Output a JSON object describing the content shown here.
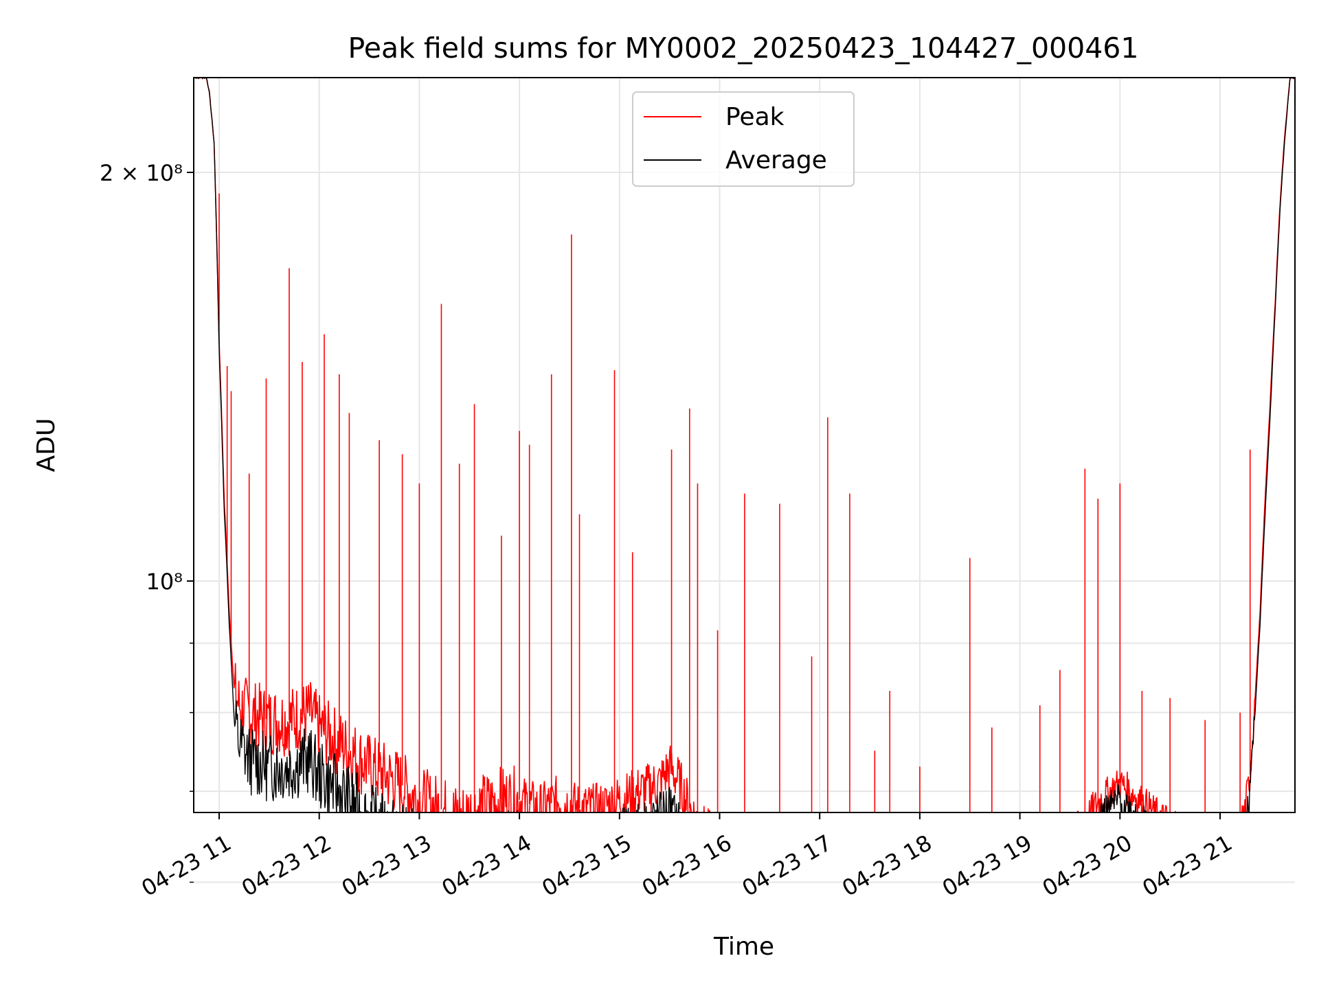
{
  "chart_data": {
    "type": "line",
    "title": "Peak field sums for MY0002_20250423_104427_000461",
    "xlabel": "Time",
    "ylabel": "ADU",
    "yscale": "log",
    "grid": true,
    "legend_position": "top-center",
    "x_tick_labels": [
      "04-23 11",
      "04-23 12",
      "04-23 13",
      "04-23 14",
      "04-23 15",
      "04-23 16",
      "04-23 17",
      "04-23 18",
      "04-23 19",
      "04-23 20",
      "04-23 21"
    ],
    "y_tick_labels": [
      {
        "value": 200000000,
        "label": "2 × 10⁸"
      },
      {
        "value": 100000000,
        "label": "10⁸"
      }
    ],
    "xlim": [
      "2025-04-23 10:45",
      "2025-04-23 21:45"
    ],
    "ylim": [
      57000000,
      235000000
    ],
    "x_unit": "hour of day, 2025-04-23",
    "series": [
      {
        "name": "Peak",
        "color": "#ff0000",
        "x": [
          10.75,
          10.8,
          10.87,
          10.9,
          10.95,
          11.0,
          11.05,
          11.1,
          11.15,
          11.2,
          11.3,
          11.5,
          11.7,
          11.9,
          12.0,
          12.2,
          12.5,
          12.8,
          13.0,
          13.2,
          13.4,
          13.6,
          13.8,
          14.0,
          14.2,
          14.4,
          14.6,
          14.8,
          15.0,
          15.2,
          15.4,
          15.5,
          15.6,
          15.7,
          15.8,
          16.0,
          16.2,
          16.5,
          16.8,
          17.0,
          17.3,
          17.6,
          17.9,
          18.0,
          18.3,
          18.6,
          18.8,
          19.0,
          19.2,
          19.4,
          19.6,
          19.8,
          20.0,
          20.2,
          20.4,
          20.6,
          20.8,
          21.0,
          21.1,
          21.2,
          21.25,
          21.3,
          21.35,
          21.4,
          21.45,
          21.5,
          21.55,
          21.6,
          21.65,
          21.7,
          21.75
        ],
        "y": [
          235000000,
          235000000,
          235000000,
          230000000,
          210000000,
          150000000,
          115000000,
          95000000,
          83000000,
          81000000,
          80000000,
          79000000,
          79000000,
          80000000,
          78000000,
          76000000,
          73000000,
          71000000,
          69000000,
          68000000,
          67000000,
          68000000,
          69000000,
          69000000,
          68000000,
          69000000,
          68000000,
          68000000,
          69000000,
          70000000,
          71000000,
          73000000,
          71000000,
          68000000,
          66000000,
          64000000,
          62000000,
          61000000,
          60000000,
          59500000,
          59000000,
          58500000,
          58500000,
          59000000,
          59000000,
          58500000,
          58500000,
          60000000,
          62000000,
          64000000,
          66000000,
          69000000,
          71000000,
          69000000,
          67000000,
          66000000,
          65000000,
          64500000,
          64000000,
          66000000,
          68000000,
          72000000,
          82000000,
          95000000,
          115000000,
          135000000,
          160000000,
          190000000,
          215000000,
          235000000,
          235000000
        ],
        "spikes": [
          [
            11.0,
            193000000
          ],
          [
            11.08,
            144000000
          ],
          [
            11.12,
            138000000
          ],
          [
            11.3,
            120000000
          ],
          [
            11.47,
            141000000
          ],
          [
            11.7,
            170000000
          ],
          [
            11.83,
            145000000
          ],
          [
            12.05,
            152000000
          ],
          [
            12.2,
            142000000
          ],
          [
            12.3,
            133000000
          ],
          [
            12.6,
            127000000
          ],
          [
            12.83,
            124000000
          ],
          [
            13.0,
            118000000
          ],
          [
            13.22,
            160000000
          ],
          [
            13.4,
            122000000
          ],
          [
            13.55,
            135000000
          ],
          [
            13.82,
            108000000
          ],
          [
            14.0,
            129000000
          ],
          [
            14.1,
            126000000
          ],
          [
            14.32,
            142000000
          ],
          [
            14.52,
            180000000
          ],
          [
            14.6,
            112000000
          ],
          [
            14.95,
            143000000
          ],
          [
            15.13,
            105000000
          ],
          [
            15.52,
            125000000
          ],
          [
            15.7,
            134000000
          ],
          [
            15.78,
            118000000
          ],
          [
            15.98,
            92000000
          ],
          [
            16.25,
            116000000
          ],
          [
            16.6,
            114000000
          ],
          [
            16.92,
            88000000
          ],
          [
            17.08,
            132000000
          ],
          [
            17.3,
            116000000
          ],
          [
            17.55,
            75000000
          ],
          [
            17.7,
            83000000
          ],
          [
            18.0,
            73000000
          ],
          [
            18.5,
            104000000
          ],
          [
            18.72,
            78000000
          ],
          [
            19.2,
            81000000
          ],
          [
            19.4,
            86000000
          ],
          [
            19.65,
            121000000
          ],
          [
            19.78,
            115000000
          ],
          [
            20.0,
            118000000
          ],
          [
            20.22,
            83000000
          ],
          [
            20.5,
            82000000
          ],
          [
            20.85,
            79000000
          ],
          [
            21.2,
            80000000
          ],
          [
            21.3,
            125000000
          ]
        ]
      },
      {
        "name": "Average",
        "color": "#000000",
        "x": [
          10.75,
          10.8,
          10.87,
          10.9,
          10.95,
          11.0,
          11.05,
          11.1,
          11.15,
          11.2,
          11.3,
          11.5,
          11.7,
          11.9,
          12.0,
          12.2,
          12.5,
          12.8,
          13.0,
          13.2,
          13.4,
          13.6,
          13.8,
          14.0,
          14.2,
          14.4,
          14.6,
          14.8,
          15.0,
          15.2,
          15.4,
          15.5,
          15.6,
          15.7,
          15.8,
          16.0,
          16.2,
          16.5,
          16.8,
          17.0,
          17.3,
          17.6,
          17.9,
          18.0,
          18.3,
          18.6,
          18.8,
          19.0,
          19.2,
          19.4,
          19.6,
          19.8,
          20.0,
          20.2,
          20.4,
          20.6,
          20.8,
          21.0,
          21.1,
          21.2,
          21.25,
          21.3,
          21.35,
          21.4,
          21.45,
          21.5,
          21.55,
          21.6,
          21.65,
          21.7,
          21.75
        ],
        "y": [
          235000000,
          235000000,
          235000000,
          230000000,
          210000000,
          148000000,
          113000000,
          93000000,
          79000000,
          76000000,
          74000000,
          73000000,
          73000000,
          74000000,
          72000000,
          70000000,
          67000000,
          65000000,
          64000000,
          63000000,
          62000000,
          63000000,
          64000000,
          64000000,
          63000000,
          64000000,
          63000000,
          63000000,
          65000000,
          66000000,
          67000000,
          68000000,
          66000000,
          63000000,
          62000000,
          60000000,
          59000000,
          58500000,
          58000000,
          58000000,
          57800000,
          57500000,
          57500000,
          57800000,
          58000000,
          57500000,
          57500000,
          58500000,
          60000000,
          62000000,
          64000000,
          67000000,
          69000000,
          67000000,
          65000000,
          64000000,
          63000000,
          62000000,
          62000000,
          63000000,
          65000000,
          70000000,
          80000000,
          93000000,
          112000000,
          132000000,
          158000000,
          188000000,
          213000000,
          235000000,
          235000000
        ]
      }
    ]
  }
}
